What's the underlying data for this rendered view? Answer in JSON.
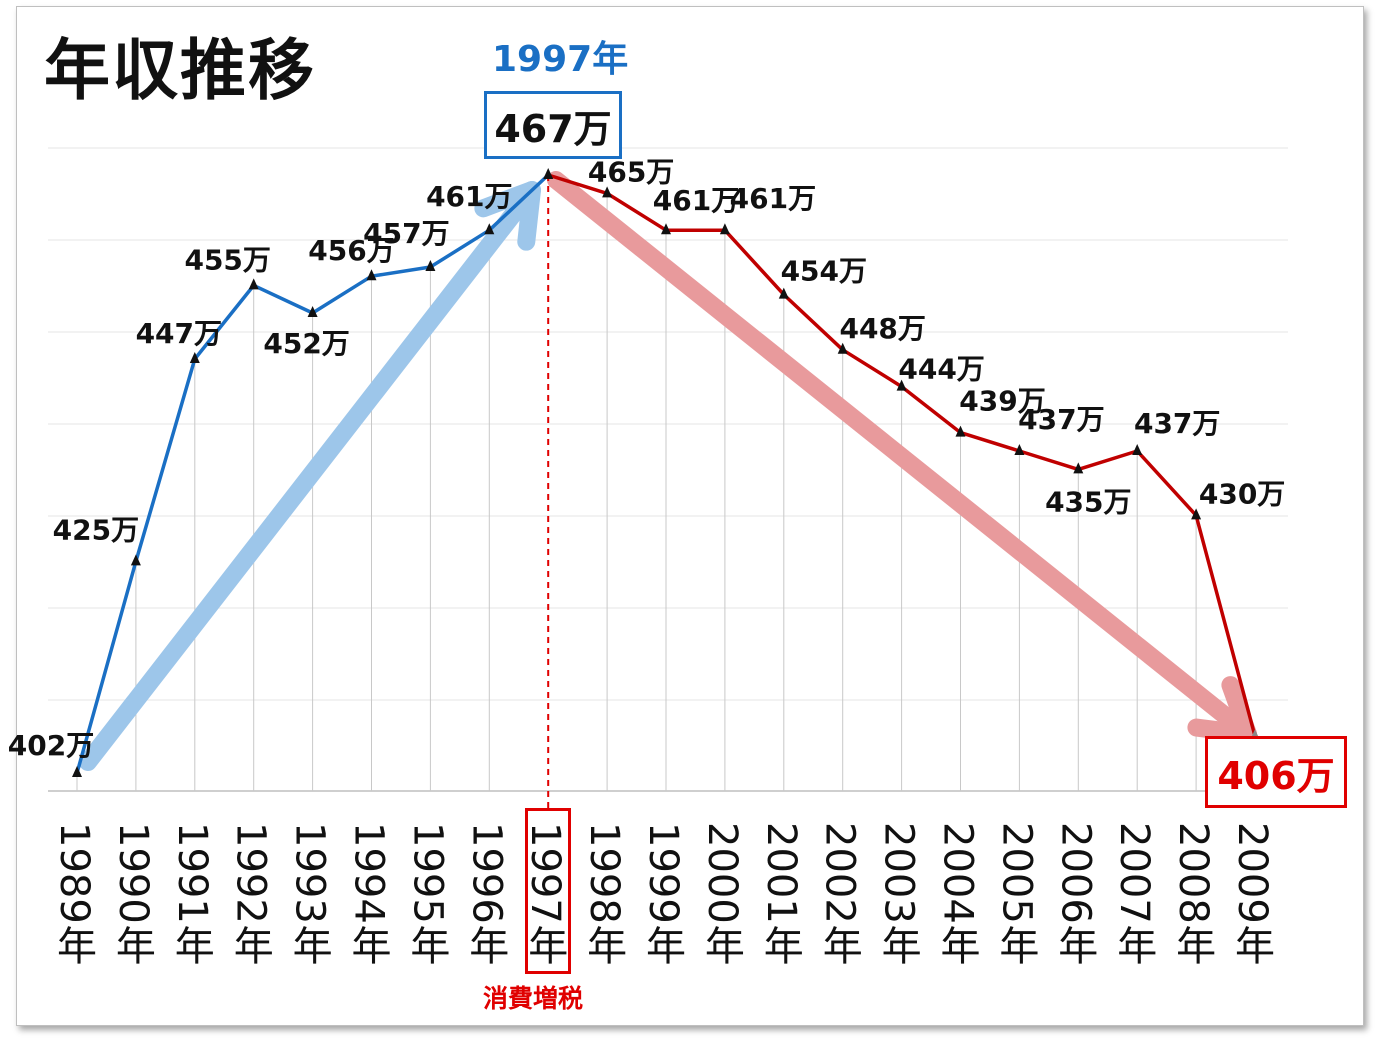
{
  "title": "年収推移",
  "peak": {
    "year_label": "1997年",
    "value_label": "467万"
  },
  "end": {
    "value_label": "406万"
  },
  "annotation": {
    "label": "消費増税"
  },
  "colors": {
    "rise": "#1a6fc4",
    "fall": "#c00000",
    "rise_arrow": "#9dc6ea",
    "fall_arrow": "#e89a9c",
    "tax_line": "#e00000"
  },
  "chart_data": {
    "type": "line",
    "title": "年収推移",
    "xlabel": "",
    "ylabel": "",
    "categories": [
      "1989年",
      "1990年",
      "1991年",
      "1992年",
      "1993年",
      "1994年",
      "1995年",
      "1996年",
      "1997年",
      "1998年",
      "1999年",
      "2000年",
      "2001年",
      "2002年",
      "2003年",
      "2004年",
      "2005年",
      "2006年",
      "2007年",
      "2008年",
      "2009年"
    ],
    "values": [
      402,
      425,
      447,
      455,
      452,
      456,
      457,
      461,
      467,
      465,
      461,
      461,
      454,
      448,
      444,
      439,
      437,
      435,
      437,
      430,
      406
    ],
    "data_labels": [
      "402万",
      "425万",
      "447万",
      "455万",
      "452万",
      "456万",
      "457万",
      "461万",
      "",
      "465万",
      "461万",
      "461万",
      "454万",
      "448万",
      "444万",
      "439万",
      "437万",
      "435万",
      "437万",
      "430万",
      ""
    ],
    "grid": true,
    "legend": "none"
  }
}
